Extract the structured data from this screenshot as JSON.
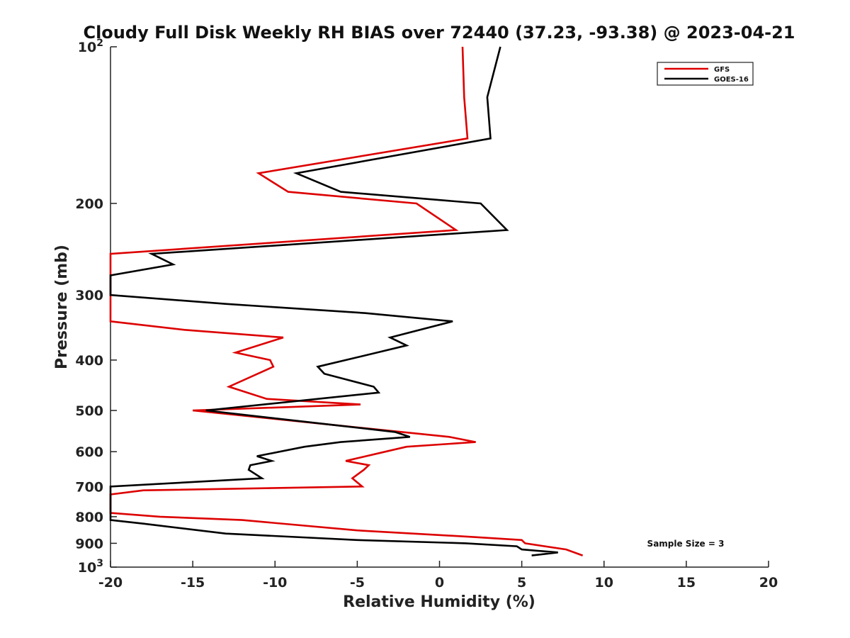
{
  "chart_data": {
    "type": "line",
    "title": "Cloudy Full Disk Weekly RH BIAS over 72440 (37.23, -93.38) @ 2023-04-21",
    "xlabel": "Relative Humidity (%)",
    "ylabel": "Pressure (mb)",
    "xlim": [
      -20,
      20
    ],
    "ylim": [
      100,
      1000
    ],
    "y_scale": "log",
    "y_reversed": true,
    "grid": false,
    "legend_position": "top-right",
    "x_ticks": [
      "-20",
      "-15",
      "-10",
      "-5",
      "0",
      "5",
      "10",
      "15",
      "20"
    ],
    "x_tick_values": [
      -20,
      -15,
      -10,
      -5,
      0,
      5,
      10,
      15,
      20
    ],
    "y_ticks": [
      {
        "value": 100,
        "base": "10",
        "exp": "2"
      },
      {
        "value": 200,
        "label": "200"
      },
      {
        "value": 300,
        "label": "300"
      },
      {
        "value": 400,
        "label": "400"
      },
      {
        "value": 500,
        "label": "500"
      },
      {
        "value": 600,
        "label": "600"
      },
      {
        "value": 700,
        "label": "700"
      },
      {
        "value": 800,
        "label": "800"
      },
      {
        "value": 900,
        "label": "900"
      },
      {
        "value": 1000,
        "base": "10",
        "exp": "3"
      }
    ],
    "annotation": "Sample Size = 3",
    "series": [
      {
        "name": "GFS",
        "color": "#dd0000",
        "points": [
          [
            1.4,
            100
          ],
          [
            1.5,
            125
          ],
          [
            1.7,
            150
          ],
          [
            -11,
            175
          ],
          [
            -9.2,
            190
          ],
          [
            -1.4,
            200
          ],
          [
            1.0,
            225
          ],
          [
            -20,
            250
          ],
          [
            -20,
            337
          ],
          [
            -15.5,
            350
          ],
          [
            -9.5,
            362
          ],
          [
            -12.4,
            387
          ],
          [
            -10.3,
            400
          ],
          [
            -10.1,
            412
          ],
          [
            -12.8,
            450
          ],
          [
            -10.5,
            475
          ],
          [
            -4.8,
            487
          ],
          [
            -15,
            500
          ],
          [
            0.6,
            562
          ],
          [
            2.2,
            575
          ],
          [
            -2,
            587
          ],
          [
            -3.3,
            600
          ],
          [
            -5.7,
            625
          ],
          [
            -4.3,
            637
          ],
          [
            -4.6,
            650
          ],
          [
            -5.3,
            675
          ],
          [
            -4.7,
            700
          ],
          [
            -18,
            712
          ],
          [
            -20,
            725
          ],
          [
            -20,
            787
          ],
          [
            -17,
            800
          ],
          [
            -12,
            812
          ],
          [
            -5,
            850
          ],
          [
            2,
            875
          ],
          [
            5,
            887
          ],
          [
            5.2,
            900
          ],
          [
            7.7,
            925
          ],
          [
            8.7,
            950
          ]
        ]
      },
      {
        "name": "GOES-16",
        "color": "#000000",
        "points": [
          [
            3.7,
            100
          ],
          [
            2.9,
            125
          ],
          [
            3.1,
            150
          ],
          [
            -8.7,
            175
          ],
          [
            -6,
            190
          ],
          [
            2.5,
            200
          ],
          [
            4.1,
            225
          ],
          [
            -17.5,
            250
          ],
          [
            -16.2,
            262
          ],
          [
            -20,
            275
          ],
          [
            -20,
            300
          ],
          [
            -13,
            312
          ],
          [
            -4.5,
            325
          ],
          [
            0.8,
            337
          ],
          [
            -3,
            362
          ],
          [
            -2,
            375
          ],
          [
            -3.8,
            387
          ],
          [
            -7.4,
            412
          ],
          [
            -7,
            425
          ],
          [
            -4,
            450
          ],
          [
            -3.7,
            462
          ],
          [
            -14.2,
            500
          ],
          [
            -2.7,
            550
          ],
          [
            -1.8,
            562
          ],
          [
            -6,
            575
          ],
          [
            -8.2,
            587
          ],
          [
            -11.1,
            612
          ],
          [
            -10.2,
            625
          ],
          [
            -11.5,
            637
          ],
          [
            -11.6,
            650
          ],
          [
            -10.8,
            675
          ],
          [
            -20,
            700
          ],
          [
            -20,
            812
          ],
          [
            -18,
            825
          ],
          [
            -13,
            862
          ],
          [
            -5,
            887
          ],
          [
            1.6,
            900
          ],
          [
            4.7,
            912
          ],
          [
            5,
            925
          ],
          [
            7.2,
            937
          ],
          [
            5.6,
            950
          ]
        ]
      }
    ]
  }
}
